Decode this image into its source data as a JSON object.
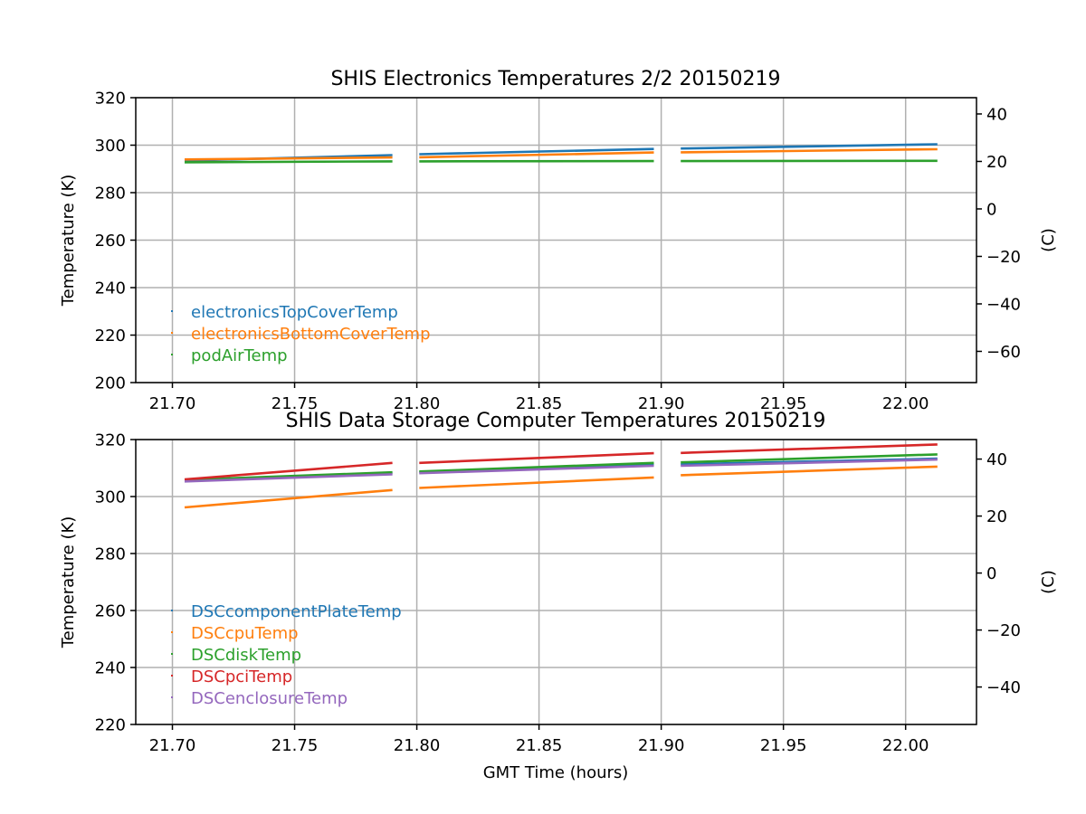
{
  "chart_data": [
    {
      "type": "scatter",
      "title": "SHIS Electronics Temperatures 2/2 20150219",
      "xlabel": "",
      "ylabel": "Temperature (K)",
      "ylabel_right": "(C)",
      "xlim": [
        21.685,
        22.029
      ],
      "ylim": [
        200,
        320
      ],
      "ylim_right": [
        -73.15,
        46.85
      ],
      "xticks": [
        "21.70",
        "21.75",
        "21.80",
        "21.85",
        "21.90",
        "21.95",
        "22.00"
      ],
      "yticks": [
        "200",
        "220",
        "240",
        "260",
        "280",
        "300",
        "320"
      ],
      "yticks_right": [
        "−60",
        "−40",
        "−20",
        "0",
        "20",
        "40"
      ],
      "grid": true,
      "legend_position": "lower-left",
      "series": [
        {
          "name": "electronicsTopCoverTemp",
          "color": "#1f77b4",
          "segments": [
            {
              "x": [
                21.705,
                21.79
              ],
              "y": [
                293.5,
                295.8
              ]
            },
            {
              "x": [
                21.801,
                21.897
              ],
              "y": [
                296.2,
                298.4
              ]
            },
            {
              "x": [
                21.908,
                22.013
              ],
              "y": [
                298.6,
                300.4
              ]
            }
          ]
        },
        {
          "name": "electronicsBottomCoverTemp",
          "color": "#ff7f0e",
          "segments": [
            {
              "x": [
                21.705,
                21.79
              ],
              "y": [
                294.0,
                294.8
              ]
            },
            {
              "x": [
                21.801,
                21.897
              ],
              "y": [
                294.9,
                296.9
              ]
            },
            {
              "x": [
                21.908,
                22.013
              ],
              "y": [
                297.0,
                298.3
              ]
            }
          ]
        },
        {
          "name": "podAirTemp",
          "color": "#2ca02c",
          "segments": [
            {
              "x": [
                21.705,
                21.79
              ],
              "y": [
                292.8,
                293.2
              ]
            },
            {
              "x": [
                21.801,
                21.897
              ],
              "y": [
                293.2,
                293.3
              ]
            },
            {
              "x": [
                21.908,
                22.013
              ],
              "y": [
                293.3,
                293.4
              ]
            }
          ]
        }
      ]
    },
    {
      "type": "scatter",
      "title": "SHIS Data Storage Computer Temperatures 20150219",
      "xlabel": "GMT Time (hours)",
      "ylabel": "Temperature (K)",
      "ylabel_right": "(C)",
      "xlim": [
        21.685,
        22.029
      ],
      "ylim": [
        220,
        320
      ],
      "ylim_right": [
        -53.15,
        46.85
      ],
      "xticks": [
        "21.70",
        "21.75",
        "21.80",
        "21.85",
        "21.90",
        "21.95",
        "22.00"
      ],
      "yticks": [
        "220",
        "240",
        "260",
        "280",
        "300",
        "320"
      ],
      "yticks_right": [
        "−40",
        "−20",
        "0",
        "20",
        "40"
      ],
      "grid": true,
      "legend_position": "lower-left",
      "series": [
        {
          "name": "DSCcomponentPlateTemp",
          "color": "#1f77b4",
          "segments": [
            {
              "x": [
                21.705,
                21.79
              ],
              "y": [
                305.5,
                308.3
              ]
            },
            {
              "x": [
                21.801,
                21.897
              ],
              "y": [
                308.5,
                311.3
              ]
            },
            {
              "x": [
                21.908,
                22.013
              ],
              "y": [
                311.3,
                313.3
              ]
            }
          ]
        },
        {
          "name": "DSCcpuTemp",
          "color": "#ff7f0e",
          "segments": [
            {
              "x": [
                21.705,
                21.79
              ],
              "y": [
                296.2,
                302.3
              ]
            },
            {
              "x": [
                21.801,
                21.897
              ],
              "y": [
                303.0,
                306.7
              ]
            },
            {
              "x": [
                21.908,
                22.013
              ],
              "y": [
                307.5,
                310.5
              ]
            }
          ]
        },
        {
          "name": "DSCdiskTemp",
          "color": "#2ca02c",
          "segments": [
            {
              "x": [
                21.705,
                21.79
              ],
              "y": [
                305.8,
                308.5
              ]
            },
            {
              "x": [
                21.801,
                21.897
              ],
              "y": [
                308.8,
                311.8
              ]
            },
            {
              "x": [
                21.908,
                22.013
              ],
              "y": [
                312.0,
                314.8
              ]
            }
          ]
        },
        {
          "name": "DSCpciTemp",
          "color": "#d62728",
          "segments": [
            {
              "x": [
                21.705,
                21.79
              ],
              "y": [
                306.0,
                311.8
              ]
            },
            {
              "x": [
                21.801,
                21.897
              ],
              "y": [
                311.8,
                315.2
              ]
            },
            {
              "x": [
                21.908,
                22.013
              ],
              "y": [
                315.3,
                318.3
              ]
            }
          ]
        },
        {
          "name": "DSCenclosureTemp",
          "color": "#9467bd",
          "segments": [
            {
              "x": [
                21.705,
                21.79
              ],
              "y": [
                305.3,
                307.8
              ]
            },
            {
              "x": [
                21.801,
                21.897
              ],
              "y": [
                308.2,
                310.8
              ]
            },
            {
              "x": [
                21.908,
                22.013
              ],
              "y": [
                310.8,
                313.0
              ]
            }
          ]
        }
      ]
    }
  ]
}
